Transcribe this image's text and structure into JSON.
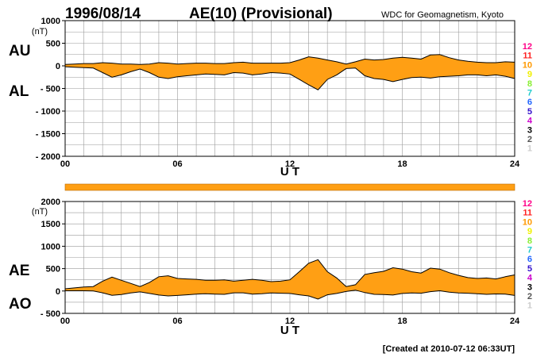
{
  "header": {
    "date": "1996/08/14",
    "title": "AE(10) (Provisional)",
    "source": "WDC for Geomagnetism, Kyoto"
  },
  "footer": {
    "created": "[Created at 2010-07-12 06:33UT]"
  },
  "colors": {
    "fill": "#ff9f14",
    "grid": "#9a9a9a",
    "stations": [
      "#ff0088",
      "#ff2020",
      "#ff9900",
      "#f0f000",
      "#88ee33",
      "#22cccc",
      "#2266ff",
      "#3311cc",
      "#cc00cc",
      "#000000",
      "#555555",
      "#cccccc"
    ]
  },
  "station_labels": [
    "12",
    "11",
    "10",
    "9",
    "8",
    "7",
    "6",
    "5",
    "4",
    "3",
    "2",
    "1"
  ],
  "chart_data": [
    {
      "type": "area",
      "xlabel": "U T",
      "ylabel": "(nT)",
      "series_labels": [
        "AU",
        "AL"
      ],
      "x_ticks": [
        "00",
        "06",
        "12",
        "18",
        "24"
      ],
      "xlim": [
        0,
        24
      ],
      "ylim": [
        -2000,
        1000
      ],
      "y_ticks": [
        1000,
        500,
        0,
        -500,
        -1000,
        -1500,
        -2000
      ],
      "y_tick_labels": [
        "1000",
        "500",
        "0",
        "- 500",
        "- 1000",
        "- 1500",
        "- 2000"
      ],
      "grid": true,
      "x": [
        0,
        0.5,
        1,
        1.5,
        2,
        2.5,
        3,
        3.5,
        4,
        4.5,
        5,
        5.5,
        6,
        6.5,
        7,
        7.5,
        8,
        8.5,
        9,
        9.5,
        10,
        10.5,
        11,
        11.5,
        12,
        12.5,
        13,
        13.5,
        14,
        14.5,
        15,
        15.5,
        16,
        16.5,
        17,
        17.5,
        18,
        18.5,
        19,
        19.5,
        20,
        20.5,
        21,
        21.5,
        22,
        22.5,
        23,
        23.5,
        24
      ],
      "series": [
        {
          "name": "AU",
          "values": [
            30,
            40,
            50,
            50,
            70,
            60,
            40,
            40,
            30,
            40,
            70,
            60,
            40,
            50,
            60,
            60,
            50,
            50,
            70,
            80,
            60,
            60,
            60,
            60,
            70,
            130,
            200,
            170,
            130,
            90,
            40,
            90,
            150,
            130,
            140,
            170,
            190,
            170,
            150,
            240,
            250,
            180,
            130,
            100,
            80,
            70,
            70,
            90,
            80
          ]
        },
        {
          "name": "AL",
          "values": [
            -20,
            -30,
            -40,
            -50,
            -150,
            -250,
            -200,
            -130,
            -70,
            -150,
            -250,
            -280,
            -240,
            -220,
            -200,
            -180,
            -190,
            -200,
            -150,
            -160,
            -200,
            -180,
            -150,
            -160,
            -180,
            -300,
            -420,
            -530,
            -300,
            -200,
            -60,
            -50,
            -220,
            -280,
            -300,
            -350,
            -300,
            -260,
            -250,
            -270,
            -240,
            -230,
            -220,
            -200,
            -200,
            -220,
            -200,
            -230,
            -280
          ]
        }
      ]
    },
    {
      "type": "area",
      "xlabel": "U T",
      "ylabel": "(nT)",
      "series_labels": [
        "AE",
        "AO"
      ],
      "x_ticks": [
        "00",
        "06",
        "12",
        "18",
        "24"
      ],
      "xlim": [
        0,
        24
      ],
      "ylim": [
        -500,
        2000
      ],
      "y_ticks": [
        2000,
        1500,
        1000,
        500,
        0,
        -500
      ],
      "y_tick_labels": [
        "2000",
        "1500",
        "1000",
        "500",
        "0",
        "- 500"
      ],
      "grid": true,
      "x": [
        0,
        0.5,
        1,
        1.5,
        2,
        2.5,
        3,
        3.5,
        4,
        4.5,
        5,
        5.5,
        6,
        6.5,
        7,
        7.5,
        8,
        8.5,
        9,
        9.5,
        10,
        10.5,
        11,
        11.5,
        12,
        12.5,
        13,
        13.5,
        14,
        14.5,
        15,
        15.5,
        16,
        16.5,
        17,
        17.5,
        18,
        18.5,
        19,
        19.5,
        20,
        20.5,
        21,
        21.5,
        22,
        22.5,
        23,
        23.5,
        24
      ],
      "series": [
        {
          "name": "AE",
          "values": [
            50,
            70,
            90,
            100,
            220,
            310,
            240,
            170,
            100,
            190,
            320,
            340,
            280,
            270,
            260,
            240,
            240,
            250,
            220,
            240,
            260,
            240,
            210,
            220,
            250,
            430,
            620,
            700,
            430,
            290,
            100,
            140,
            370,
            410,
            440,
            520,
            490,
            430,
            400,
            510,
            490,
            410,
            350,
            300,
            280,
            290,
            270,
            320,
            360
          ]
        },
        {
          "name": "AO",
          "values": [
            5,
            5,
            5,
            0,
            -40,
            -95,
            -80,
            -45,
            -20,
            -55,
            -90,
            -110,
            -100,
            -85,
            -70,
            -60,
            -70,
            -75,
            -40,
            -40,
            -70,
            -60,
            -45,
            -50,
            -55,
            -85,
            -110,
            -180,
            -85,
            -55,
            -10,
            20,
            -35,
            -75,
            -80,
            -90,
            -55,
            -45,
            -50,
            -15,
            5,
            -25,
            -45,
            -50,
            -60,
            -75,
            -65,
            -70,
            -100
          ]
        }
      ]
    }
  ]
}
